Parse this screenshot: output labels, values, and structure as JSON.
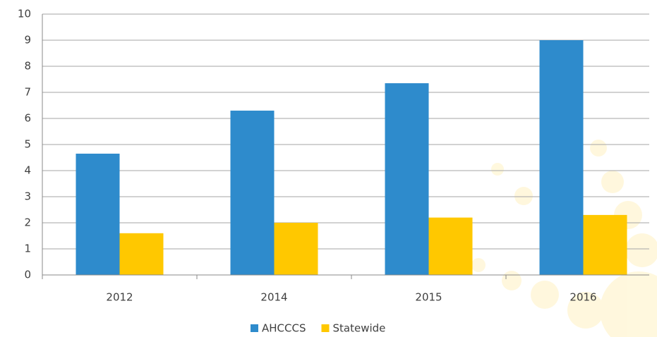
{
  "chart_data": {
    "type": "bar",
    "categories": [
      "2012",
      "2014",
      "2015",
      "2016"
    ],
    "series": [
      {
        "name": "AHCCCS",
        "color": "#2e8bcc",
        "values": [
          4.65,
          6.3,
          7.35,
          9.0
        ]
      },
      {
        "name": "Statewide",
        "color": "#ffc800",
        "values": [
          1.6,
          2.0,
          2.2,
          2.3
        ]
      }
    ],
    "ylim": [
      0,
      10
    ],
    "yticks": [
      0,
      1,
      2,
      3,
      4,
      5,
      6,
      7,
      8,
      9,
      10
    ],
    "grid": true,
    "legend": "bottom"
  }
}
